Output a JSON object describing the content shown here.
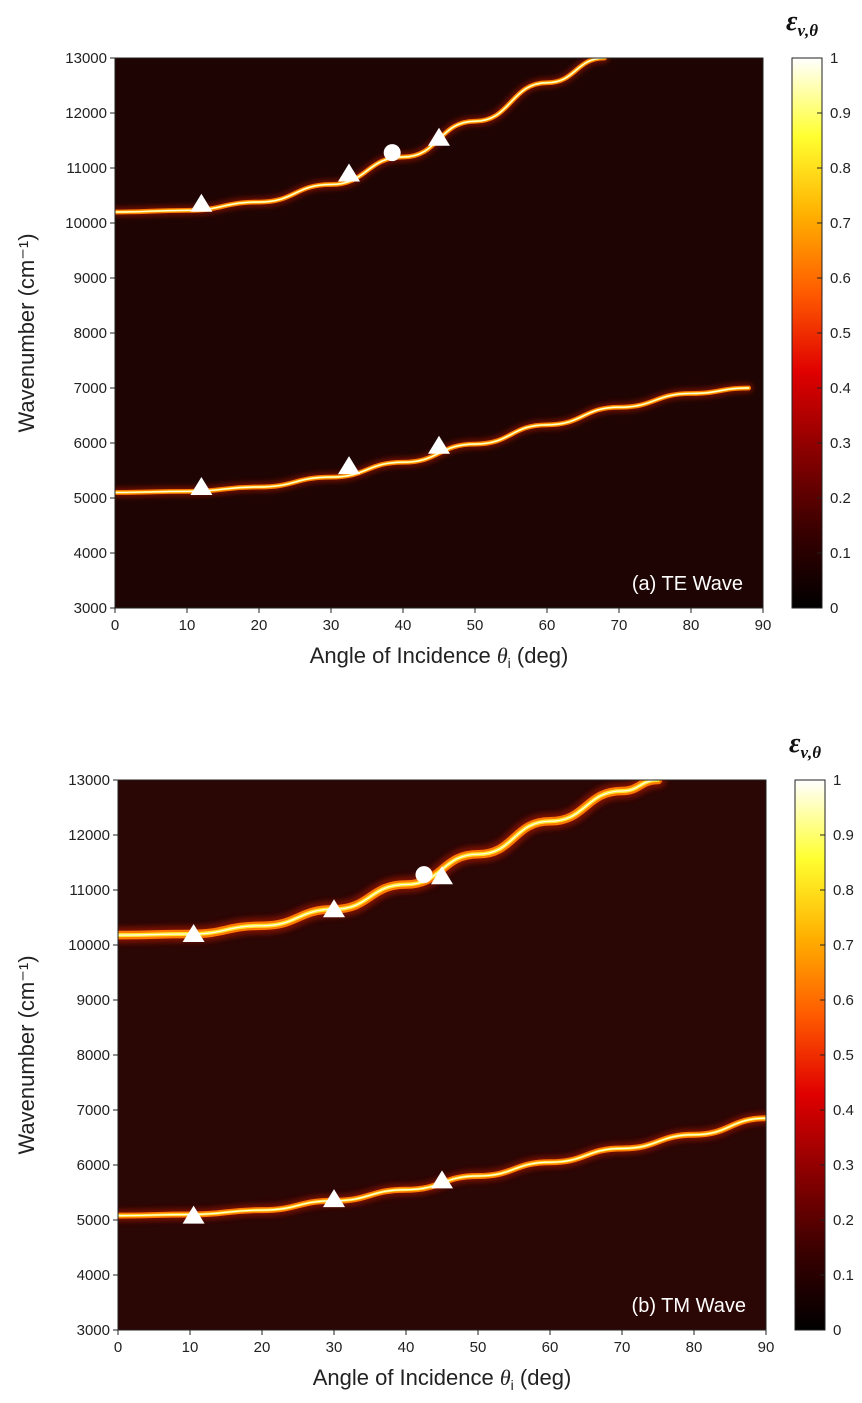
{
  "chart_data": [
    {
      "type": "heatmap",
      "panel_label": "(a) TE Wave",
      "xlabel_main": "Angle of Incidence",
      "xlabel_symbol": "θ",
      "xlabel_subscript": "i",
      "xlabel_unit": "(deg)",
      "ylabel": "Wavenumber (cm⁻¹)",
      "xlim": [
        0,
        90
      ],
      "ylim": [
        3000,
        13000
      ],
      "x_ticks": [
        "0",
        "10",
        "20",
        "30",
        "40",
        "50",
        "60",
        "70",
        "80",
        "90"
      ],
      "y_ticks": [
        "3000",
        "4000",
        "5000",
        "6000",
        "7000",
        "8000",
        "9000",
        "10000",
        "11000",
        "12000",
        "13000"
      ],
      "colorbar_title": "ε",
      "colorbar_subscript": "ν,θ",
      "colorbar_ticks": [
        "0",
        "0.1",
        "0.2",
        "0.3",
        "0.4",
        "0.5",
        "0.6",
        "0.7",
        "0.8",
        "0.9",
        "1"
      ],
      "colorbar_range": [
        0,
        1
      ],
      "colormap": [
        "#000000",
        "#3a0000",
        "#8b0000",
        "#e00000",
        "#ff5a00",
        "#ffb000",
        "#ffff30",
        "#ffffff"
      ],
      "background_color": "#1e0503",
      "series": [
        {
          "points": [
            [
              0,
              10200
            ],
            [
              10,
              10230
            ],
            [
              20,
              10380
            ],
            [
              30,
              10700
            ],
            [
              40,
              11200
            ],
            [
              50,
              11850
            ],
            [
              60,
              12550
            ],
            [
              68,
              13000
            ]
          ],
          "width_cm": 60
        },
        {
          "points": [
            [
              0,
              5100
            ],
            [
              10,
              5120
            ],
            [
              20,
              5200
            ],
            [
              30,
              5380
            ],
            [
              40,
              5650
            ],
            [
              50,
              5980
            ],
            [
              60,
              6330
            ],
            [
              70,
              6650
            ],
            [
              80,
              6900
            ],
            [
              88,
              7000
            ]
          ],
          "width_cm": 55
        }
      ],
      "triangle_markers": [
        [
          12,
          10350
        ],
        [
          32.5,
          10900
        ],
        [
          45,
          11550
        ],
        [
          12,
          5200
        ],
        [
          32.5,
          5580
        ],
        [
          45,
          5950
        ]
      ],
      "circle_markers": [
        [
          38.5,
          11280
        ]
      ]
    },
    {
      "type": "heatmap",
      "panel_label": "(b) TM Wave",
      "xlabel_main": "Angle of Incidence",
      "xlabel_symbol": "θ",
      "xlabel_subscript": "i",
      "xlabel_unit": "(deg)",
      "ylabel": "Wavenumber (cm⁻¹)",
      "xlim": [
        0,
        90
      ],
      "ylim": [
        3000,
        13000
      ],
      "x_ticks": [
        "0",
        "10",
        "20",
        "30",
        "40",
        "50",
        "60",
        "70",
        "80",
        "90"
      ],
      "y_ticks": [
        "3000",
        "4000",
        "5000",
        "6000",
        "7000",
        "8000",
        "9000",
        "10000",
        "11000",
        "12000",
        "13000"
      ],
      "colorbar_title": "ε",
      "colorbar_subscript": "ν,θ",
      "colorbar_ticks": [
        "0",
        "0.1",
        "0.2",
        "0.3",
        "0.4",
        "0.5",
        "0.6",
        "0.7",
        "0.8",
        "0.9",
        "1"
      ],
      "colorbar_range": [
        0,
        1
      ],
      "colormap": [
        "#000000",
        "#3a0000",
        "#8b0000",
        "#e00000",
        "#ff5a00",
        "#ffb000",
        "#ffff30",
        "#ffffff"
      ],
      "background_color": "#2a0604",
      "series": [
        {
          "points": [
            [
              0,
              10180
            ],
            [
              10,
              10200
            ],
            [
              20,
              10350
            ],
            [
              30,
              10650
            ],
            [
              40,
              11100
            ],
            [
              50,
              11650
            ],
            [
              60,
              12250
            ],
            [
              70,
              12800
            ],
            [
              75,
              13000
            ]
          ],
          "width_cm": 130
        },
        {
          "points": [
            [
              0,
              5080
            ],
            [
              10,
              5100
            ],
            [
              20,
              5180
            ],
            [
              30,
              5350
            ],
            [
              40,
              5550
            ],
            [
              50,
              5800
            ],
            [
              60,
              6050
            ],
            [
              70,
              6300
            ],
            [
              80,
              6550
            ],
            [
              90,
              6850
            ]
          ],
          "width_cm": 90
        }
      ],
      "triangle_markers": [
        [
          10.5,
          10200
        ],
        [
          30,
          10650
        ],
        [
          45,
          11250
        ],
        [
          10.5,
          5080
        ],
        [
          30,
          5380
        ],
        [
          45,
          5720
        ]
      ],
      "circle_markers": [
        [
          42.5,
          11280
        ]
      ]
    }
  ]
}
